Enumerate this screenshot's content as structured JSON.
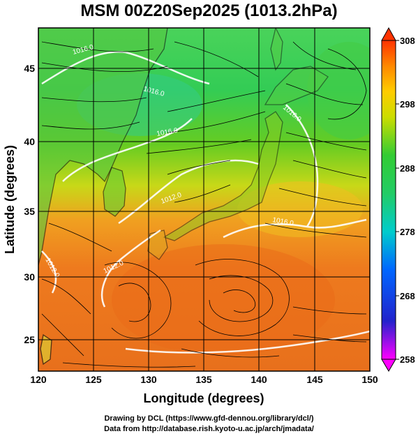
{
  "title": "MSM 00Z20Sep2025 (1013.2hPa)",
  "xlabel": "Longitude (degrees)",
  "ylabel": "Latitude  (degrees)",
  "x_ticks": [
    "120",
    "125",
    "130",
    "135",
    "140",
    "145",
    "150"
  ],
  "y_ticks": [
    "25",
    "30",
    "35",
    "40",
    "45"
  ],
  "colorbar_ticks": [
    "308",
    "298",
    "288",
    "278",
    "268",
    "258"
  ],
  "colorbar_range": [
    258,
    308
  ],
  "isobar_labels": [
    "1016.0",
    "1016.0",
    "1016.0",
    "1012.0",
    "1012.0",
    "1016.0",
    "1016.0",
    "1012.0"
  ],
  "credit_line1": "Drawing by DCL (https://www.gfd-dennou.org/library/dcl/)",
  "credit_line2": "Data from http://database.rish.kyoto-u.ac.jp/arch/jmadata/",
  "map_extent": {
    "lon": [
      120,
      150
    ],
    "lat": [
      22.5,
      47.5
    ]
  },
  "colors": {
    "cold_low": "#ff00ff",
    "cold": "#0000ff",
    "mid": "#00e0e0",
    "mild": "#22cc22",
    "warm": "#ffff00",
    "hot": "#ff8800",
    "max": "#ff2200"
  }
}
